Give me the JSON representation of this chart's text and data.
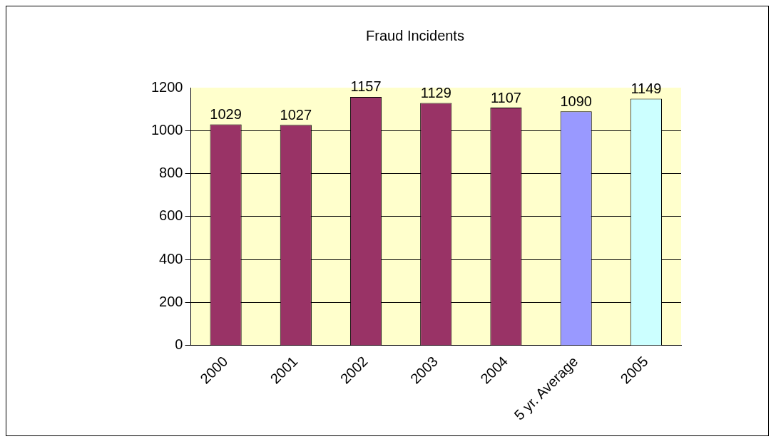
{
  "chart_data": {
    "type": "bar",
    "title": "Fraud Incidents",
    "categories": [
      "2000",
      "2001",
      "2002",
      "2003",
      "2004",
      "5 yr. Average",
      "2005"
    ],
    "values": [
      1029,
      1027,
      1157,
      1129,
      1107,
      1090,
      1149
    ],
    "colors": [
      "#993366",
      "#993366",
      "#993366",
      "#993366",
      "#993366",
      "#9999ff",
      "#ccffff"
    ],
    "ylim": [
      0,
      1200
    ],
    "yticks": [
      0,
      200,
      400,
      600,
      800,
      1000,
      1200
    ],
    "grid": "y",
    "data_labels": true,
    "legend": false
  }
}
